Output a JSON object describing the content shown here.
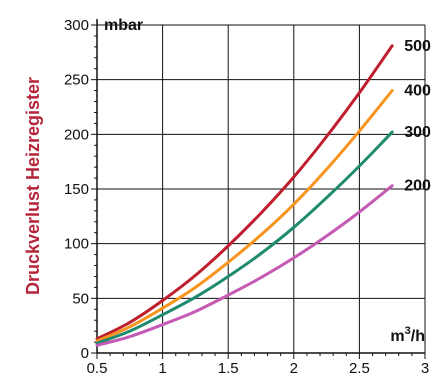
{
  "chart_data": {
    "type": "line",
    "ylabel": "Druckverlust Heizregister",
    "y_unit": "mbar",
    "x_unit_base": "m",
    "x_unit_sup": "3",
    "x_unit_tail": "/h",
    "xlim": [
      0.5,
      3
    ],
    "ylim": [
      0,
      300
    ],
    "x_ticks": [
      0.5,
      1,
      1.5,
      2,
      2.5,
      3
    ],
    "x_tick_labels": [
      "0.5",
      "1",
      "1.5",
      "2",
      "2.5",
      "3"
    ],
    "y_ticks": [
      0,
      50,
      100,
      150,
      200,
      250,
      300
    ],
    "y_tick_labels": [
      "0",
      "50",
      "100",
      "150",
      "200",
      "250",
      "300"
    ],
    "grid": true,
    "colors": {
      "ylabel": "#b5253a",
      "axis": "#111111",
      "grid": "#111111"
    },
    "series": [
      {
        "name": "500",
        "color": "#be1e2d",
        "x": [
          0.5,
          0.75,
          1,
          1.25,
          1.5,
          1.75,
          2,
          2.25,
          2.5,
          2.75
        ],
        "y": [
          13,
          28,
          48,
          71,
          98,
          128,
          161,
          198,
          238,
          281
        ]
      },
      {
        "name": "400",
        "color": "#f7941d",
        "x": [
          0.5,
          0.75,
          1,
          1.25,
          1.5,
          1.75,
          2,
          2.25,
          2.5,
          2.75
        ],
        "y": [
          11,
          24,
          41,
          60,
          83,
          108,
          136,
          168,
          203,
          240
        ]
      },
      {
        "name": "300",
        "color": "#1e8a6e",
        "x": [
          0.5,
          0.75,
          1,
          1.25,
          1.5,
          1.75,
          2,
          2.25,
          2.5,
          2.75
        ],
        "y": [
          9,
          20,
          35,
          51,
          70,
          91,
          115,
          142,
          171,
          202
        ]
      },
      {
        "name": "200",
        "color": "#c45ab3",
        "x": [
          0.5,
          0.75,
          1,
          1.25,
          1.5,
          1.75,
          2,
          2.25,
          2.5,
          2.75
        ],
        "y": [
          7,
          15,
          26,
          38,
          53,
          69,
          87,
          107,
          129,
          153
        ]
      }
    ]
  }
}
